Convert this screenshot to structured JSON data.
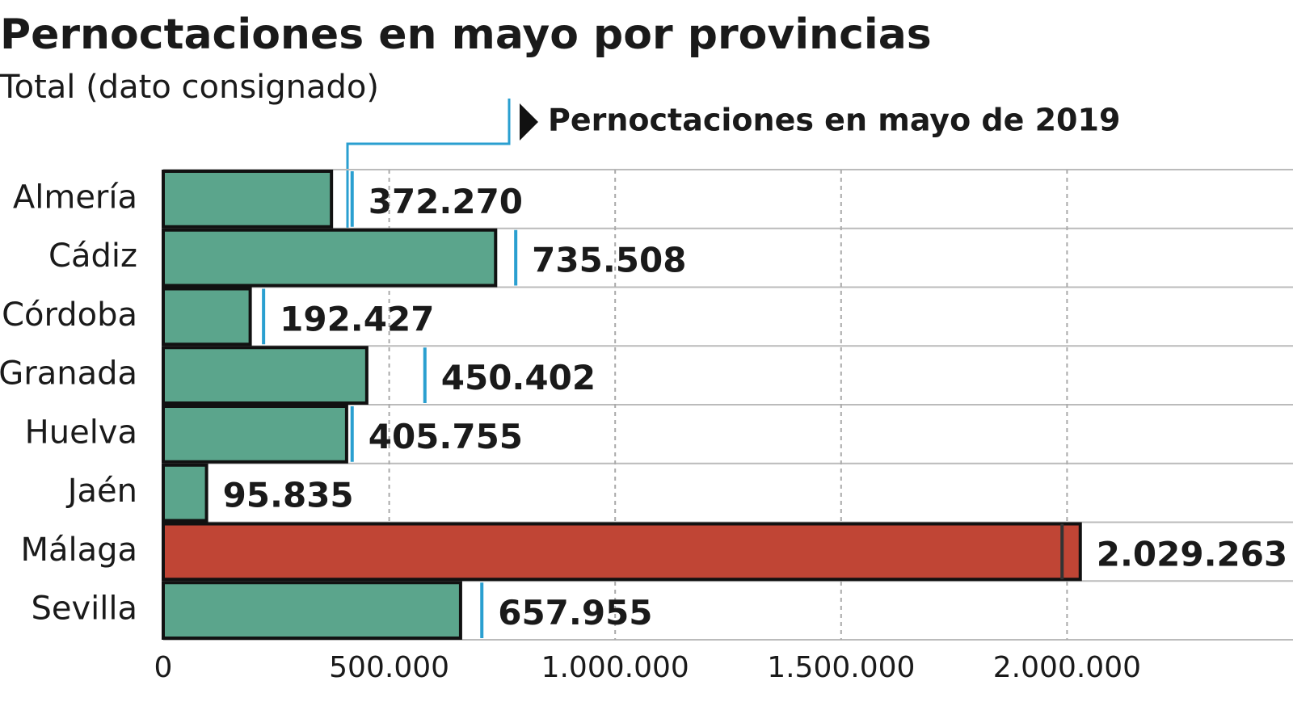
{
  "chart_data": {
    "type": "bar",
    "title": "Pernoctaciones en mayo por provincias",
    "subtitle": "Total (dato consignado)",
    "categories": [
      "Almería",
      "Cádiz",
      "Córdoba",
      "Granada",
      "Huelva",
      "Jaén",
      "Málaga",
      "Sevilla"
    ],
    "series": [
      {
        "colors": [
          "#5ba58c",
          "#5ba58c",
          "#5ba58c",
          "#5ba58c",
          "#5ba58c",
          "#5ba58c",
          "#c04535",
          "#5ba58c"
        ],
        "values": [
          372270,
          735508,
          192427,
          450402,
          405755,
          95835,
          2029263,
          657955
        ],
        "value_labels": [
          "372.270",
          "735.508",
          "192.427",
          "450.402",
          "405.755",
          "95.835",
          "2.029.263",
          "657.955"
        ]
      },
      {
        "name": "Pernoctaciones en mayo de 2019",
        "color": "#2a9fd0",
        "values": [
          418000,
          780000,
          222000,
          579000,
          418000,
          null,
          1989000,
          705000
        ]
      }
    ],
    "xlim": [
      0,
      2500000
    ],
    "xticks": [
      0,
      {
        "value": 500000,
        "label": "500.000"
      },
      {
        "value": 1000000,
        "label": "1.000.000"
      },
      {
        "value": 1500000,
        "label": "1.500.000"
      },
      {
        "value": 2000000,
        "label": "2.000.000"
      }
    ],
    "grid": true
  }
}
